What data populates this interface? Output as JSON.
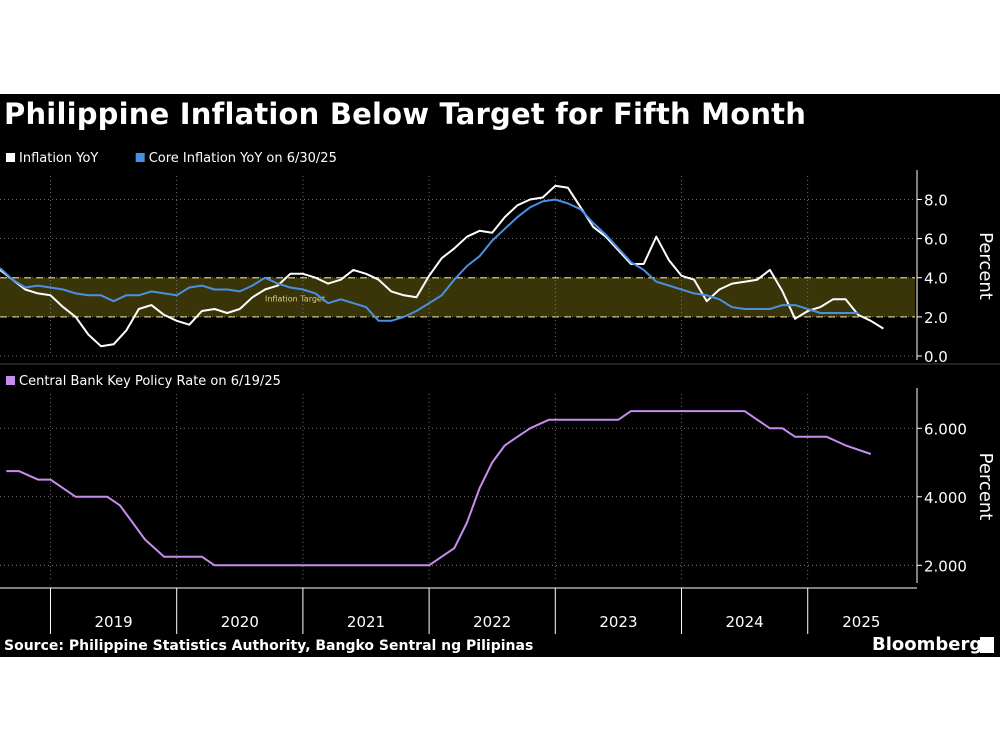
{
  "title": "Philippine Inflation Below Target for Fifth Month",
  "source": "Source: Philippine Statistics Authority, Bangko Sentral ng Pilipinas",
  "brand": "Bloomberg",
  "colors": {
    "background": "#000000",
    "inflation": "#ffffff",
    "core": "#4a90e2",
    "policy": "#c68df0",
    "target_band": "#3a3508",
    "target_line": "#d8cf7a",
    "grid": "#8a8a8a"
  },
  "chart_data": [
    {
      "type": "line",
      "title": "Philippine Inflation Below Target for Fifth Month",
      "ylabel": "Percent",
      "ylim": [
        0,
        9.2
      ],
      "y_ticks": [
        "0.0",
        "2.0",
        "4.0",
        "6.0",
        "8.0"
      ],
      "y_tick_values": [
        0,
        2,
        4,
        6,
        8
      ],
      "grid": true,
      "legend_position": "top-left",
      "annotation": {
        "label": "Inflation Target",
        "range": [
          2,
          4
        ]
      },
      "x_unit": "year",
      "xlim": [
        2018.6,
        2025.85
      ],
      "series": [
        {
          "name": "Inflation YoY",
          "color_key": "inflation",
          "x": [
            2018.6,
            2018.7,
            2018.8,
            2018.9,
            2019.0,
            2019.1,
            2019.2,
            2019.3,
            2019.4,
            2019.5,
            2019.6,
            2019.7,
            2019.8,
            2019.9,
            2020.0,
            2020.1,
            2020.2,
            2020.3,
            2020.4,
            2020.5,
            2020.6,
            2020.7,
            2020.8,
            2020.9,
            2021.0,
            2021.1,
            2021.2,
            2021.3,
            2021.4,
            2021.5,
            2021.6,
            2021.7,
            2021.8,
            2021.9,
            2022.0,
            2022.1,
            2022.2,
            2022.3,
            2022.4,
            2022.5,
            2022.6,
            2022.7,
            2022.8,
            2022.9,
            2023.0,
            2023.1,
            2023.2,
            2023.3,
            2023.4,
            2023.5,
            2023.6,
            2023.7,
            2023.8,
            2023.9,
            2024.0,
            2024.1,
            2024.2,
            2024.3,
            2024.4,
            2024.5,
            2024.6,
            2024.7,
            2024.8,
            2024.9,
            2025.0,
            2025.1,
            2025.2,
            2025.3,
            2025.4,
            2025.5,
            2025.6
          ],
          "values": [
            4.4,
            3.9,
            3.4,
            3.2,
            3.1,
            2.5,
            2.0,
            1.1,
            0.5,
            0.6,
            1.3,
            2.4,
            2.6,
            2.1,
            1.8,
            1.6,
            2.3,
            2.4,
            2.2,
            2.4,
            3.0,
            3.4,
            3.6,
            4.2,
            4.2,
            4.0,
            3.7,
            3.9,
            4.4,
            4.2,
            3.9,
            3.3,
            3.1,
            3.0,
            4.1,
            5.0,
            5.5,
            6.1,
            6.4,
            6.3,
            7.1,
            7.7,
            8.0,
            8.1,
            8.7,
            8.6,
            7.6,
            6.6,
            6.1,
            5.4,
            4.7,
            4.7,
            6.1,
            4.9,
            4.1,
            3.9,
            2.8,
            3.4,
            3.7,
            3.8,
            3.9,
            4.4,
            3.3,
            1.9,
            2.3,
            2.5,
            2.9,
            2.9,
            2.1,
            1.8,
            1.4
          ]
        },
        {
          "name": "Core Inflation YoY on 6/30/25",
          "color_key": "core",
          "x": [
            2018.6,
            2018.7,
            2018.8,
            2018.9,
            2019.0,
            2019.1,
            2019.2,
            2019.3,
            2019.4,
            2019.5,
            2019.6,
            2019.7,
            2019.8,
            2019.9,
            2020.0,
            2020.1,
            2020.2,
            2020.3,
            2020.4,
            2020.5,
            2020.6,
            2020.7,
            2020.8,
            2020.9,
            2021.0,
            2021.1,
            2021.2,
            2021.3,
            2021.4,
            2021.5,
            2021.6,
            2021.7,
            2021.8,
            2021.9,
            2022.0,
            2022.1,
            2022.2,
            2022.3,
            2022.4,
            2022.5,
            2022.6,
            2022.7,
            2022.8,
            2022.9,
            2023.0,
            2023.1,
            2023.2,
            2023.3,
            2023.4,
            2023.5,
            2023.6,
            2023.7,
            2023.8,
            2023.9,
            2024.0,
            2024.1,
            2024.2,
            2024.3,
            2024.4,
            2024.5,
            2024.6,
            2024.7,
            2024.8,
            2024.9,
            2025.0,
            2025.1,
            2025.2,
            2025.3,
            2025.4
          ],
          "values": [
            4.5,
            3.9,
            3.5,
            3.6,
            3.5,
            3.4,
            3.2,
            3.1,
            3.1,
            2.8,
            3.1,
            3.1,
            3.3,
            3.2,
            3.1,
            3.5,
            3.6,
            3.4,
            3.4,
            3.3,
            3.6,
            4.0,
            3.7,
            3.5,
            3.4,
            3.2,
            2.7,
            2.9,
            2.7,
            2.5,
            1.8,
            1.8,
            2.0,
            2.3,
            2.7,
            3.1,
            3.9,
            4.6,
            5.1,
            5.9,
            6.5,
            7.1,
            7.6,
            7.9,
            8.0,
            7.8,
            7.5,
            6.8,
            6.2,
            5.5,
            4.8,
            4.4,
            3.8,
            3.6,
            3.4,
            3.2,
            3.1,
            2.9,
            2.5,
            2.4,
            2.4,
            2.4,
            2.6,
            2.6,
            2.4,
            2.2,
            2.2,
            2.2,
            2.2
          ]
        }
      ]
    },
    {
      "type": "line",
      "title": "",
      "ylabel": "Percent",
      "ylim": [
        1.6,
        7.0
      ],
      "y_ticks": [
        "2.000",
        "4.000",
        "6.000"
      ],
      "y_tick_values": [
        2,
        4,
        6
      ],
      "grid": true,
      "legend_position": "top-left",
      "x_unit": "year",
      "xlim": [
        2018.6,
        2025.85
      ],
      "x_ticks": [
        "2019",
        "2020",
        "2021",
        "2022",
        "2023",
        "2024",
        "2025"
      ],
      "x_tick_values": [
        2019.0,
        2020.0,
        2021.0,
        2022.0,
        2023.0,
        2024.0,
        2025.0
      ],
      "series": [
        {
          "name": "Central Bank Key Policy Rate on 6/19/25",
          "color_key": "policy",
          "x": [
            2018.65,
            2018.75,
            2018.9,
            2019.0,
            2019.1,
            2019.2,
            2019.3,
            2019.45,
            2019.55,
            2019.75,
            2019.9,
            2020.0,
            2020.1,
            2020.2,
            2020.3,
            2020.5,
            2020.6,
            2020.8,
            2020.85,
            2021.0,
            2022.0,
            2022.1,
            2022.2,
            2022.3,
            2022.4,
            2022.5,
            2022.6,
            2022.7,
            2022.8,
            2022.95,
            2023.0,
            2023.2,
            2023.5,
            2023.6,
            2023.7,
            2024.0,
            2024.5,
            2024.6,
            2024.7,
            2024.8,
            2024.9,
            2025.0,
            2025.15,
            2025.3,
            2025.5
          ],
          "values": [
            4.75,
            4.75,
            4.5,
            4.5,
            4.25,
            4.0,
            4.0,
            4.0,
            3.75,
            2.75,
            2.25,
            2.25,
            2.25,
            2.25,
            2.0,
            2.0,
            2.0,
            2.0,
            2.0,
            2.0,
            2.0,
            2.25,
            2.5,
            3.25,
            4.25,
            5.0,
            5.5,
            5.75,
            6.0,
            6.25,
            6.25,
            6.25,
            6.25,
            6.5,
            6.5,
            6.5,
            6.5,
            6.25,
            6.0,
            6.0,
            5.75,
            5.75,
            5.75,
            5.5,
            5.25
          ]
        }
      ]
    }
  ]
}
